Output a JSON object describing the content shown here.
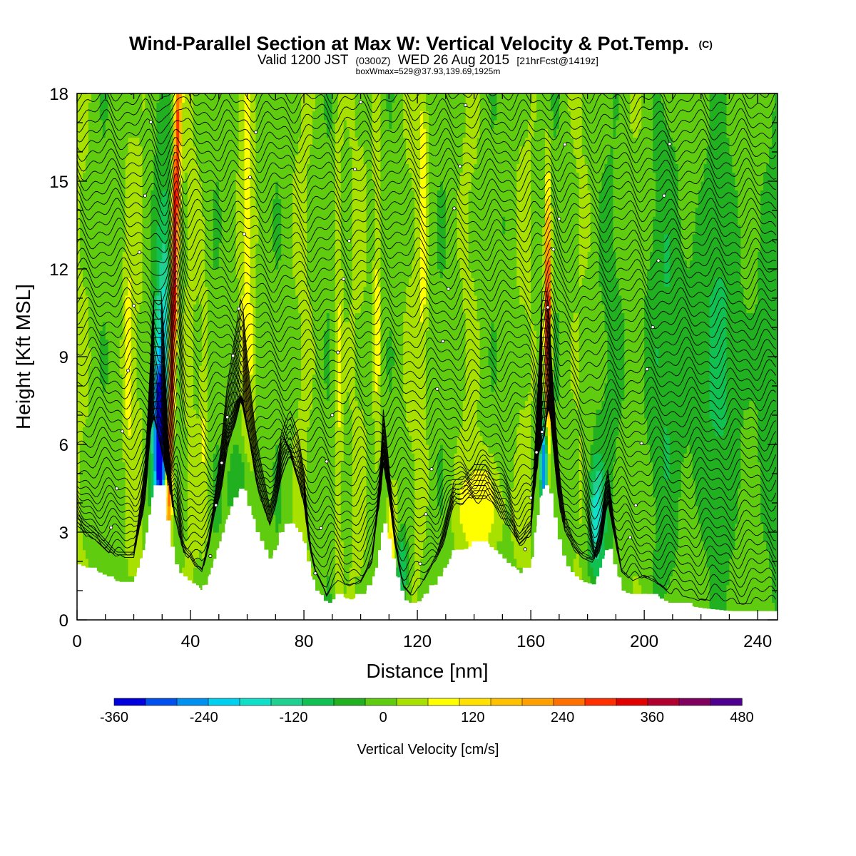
{
  "chart_data": {
    "type": "heatmap",
    "title": "Wind-Parallel Section at Max W: Vertical Velocity & Pot.Temp.",
    "title_mark": "(C)",
    "subtitle_parts": [
      "Valid 1200 JST",
      "(0300Z)",
      "WED 26 Aug 2015",
      "[21hrFcst@1419z]"
    ],
    "subtitle2": "boxWmax=529@37.93,139.69,1925m",
    "xlabel": "Distance [nm]",
    "ylabel": "Height [Kft MSL]",
    "xlim": [
      0,
      247
    ],
    "ylim": [
      0,
      18
    ],
    "x_ticks": [
      0,
      40,
      80,
      120,
      160,
      200,
      240
    ],
    "y_ticks": [
      0,
      3,
      6,
      9,
      12,
      15,
      18
    ],
    "colorbar": {
      "title": "Vertical Velocity [cm/s]",
      "min": -360,
      "max": 480,
      "step": 40,
      "labels": [
        -360,
        -240,
        -120,
        0,
        120,
        240,
        360,
        480
      ],
      "colors": [
        "#0000dd",
        "#0050ee",
        "#0090f0",
        "#00d0f0",
        "#10e0c8",
        "#20d090",
        "#10c050",
        "#20b020",
        "#60cc10",
        "#a8e000",
        "#ffff00",
        "#ffe000",
        "#ffc000",
        "#ffa000",
        "#ff7000",
        "#ff3000",
        "#e00000",
        "#b00030",
        "#800060",
        "#500090"
      ]
    },
    "updrafts": [
      {
        "x": 33.5,
        "peak_cm_s": 440
      },
      {
        "x": 166,
        "peak_cm_s": 360
      }
    ],
    "downdrafts": [
      {
        "x": 29,
        "peak_cm_s": -360
      },
      {
        "x": 164.5,
        "peak_cm_s": -280
      },
      {
        "x": 183,
        "peak_cm_s": -160
      }
    ],
    "grid": false,
    "legend": "bottom colorbar"
  }
}
